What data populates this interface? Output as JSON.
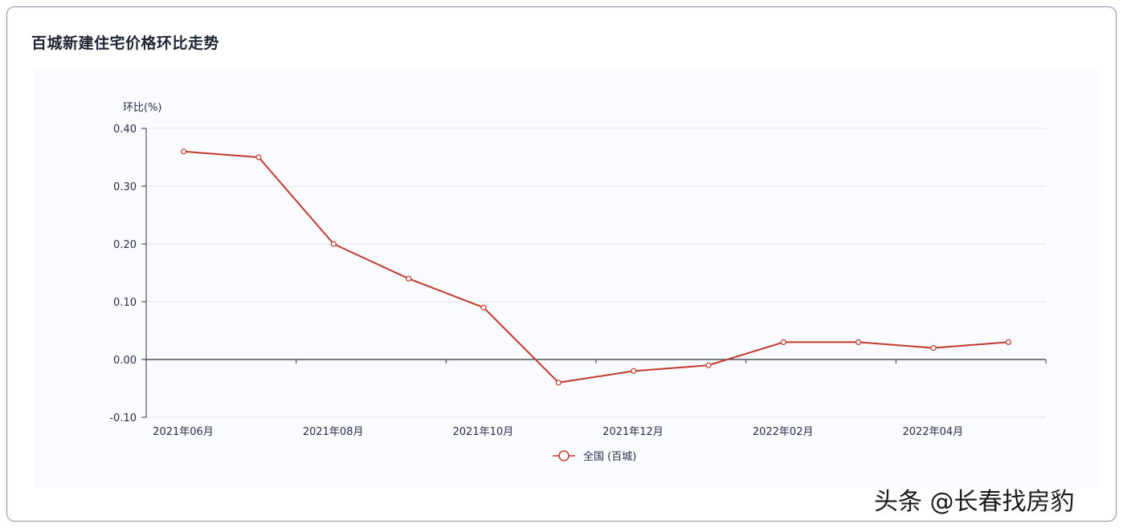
{
  "title": "百城新建住宅价格环比走势",
  "watermark": "头条 @长春找房豹",
  "colors": {
    "series": "#c0392b",
    "grid": "#dde5f2",
    "axis": "#333333",
    "tick_text": "#2c2c4a"
  },
  "chart_data": {
    "type": "line",
    "title": "百城新建住宅价格环比走势",
    "ylabel": "环比(%)",
    "xlabel": "",
    "ylim": [
      -0.1,
      0.4
    ],
    "y_ticks": [
      "0.40",
      "0.30",
      "0.20",
      "0.10",
      "0.00",
      "-0.10"
    ],
    "x": [
      "2021年06月",
      "2021年07月",
      "2021年08月",
      "2021年09月",
      "2021年10月",
      "2021年11月",
      "2021年12月",
      "2022年01月",
      "2022年02月",
      "2022年03月",
      "2022年04月",
      "2022年05月"
    ],
    "x_tick_labels": [
      "2021年06月",
      "",
      "2021年08月",
      "",
      "2021年10月",
      "",
      "2021年12月",
      "",
      "2022年02月",
      "",
      "2022年04月",
      ""
    ],
    "grid": true,
    "legend_position": "bottom-center",
    "series": [
      {
        "name": "全国 (百城)",
        "values": [
          0.36,
          0.35,
          0.2,
          0.14,
          0.09,
          -0.04,
          -0.02,
          -0.01,
          0.03,
          0.03,
          0.02,
          0.03
        ]
      }
    ]
  }
}
